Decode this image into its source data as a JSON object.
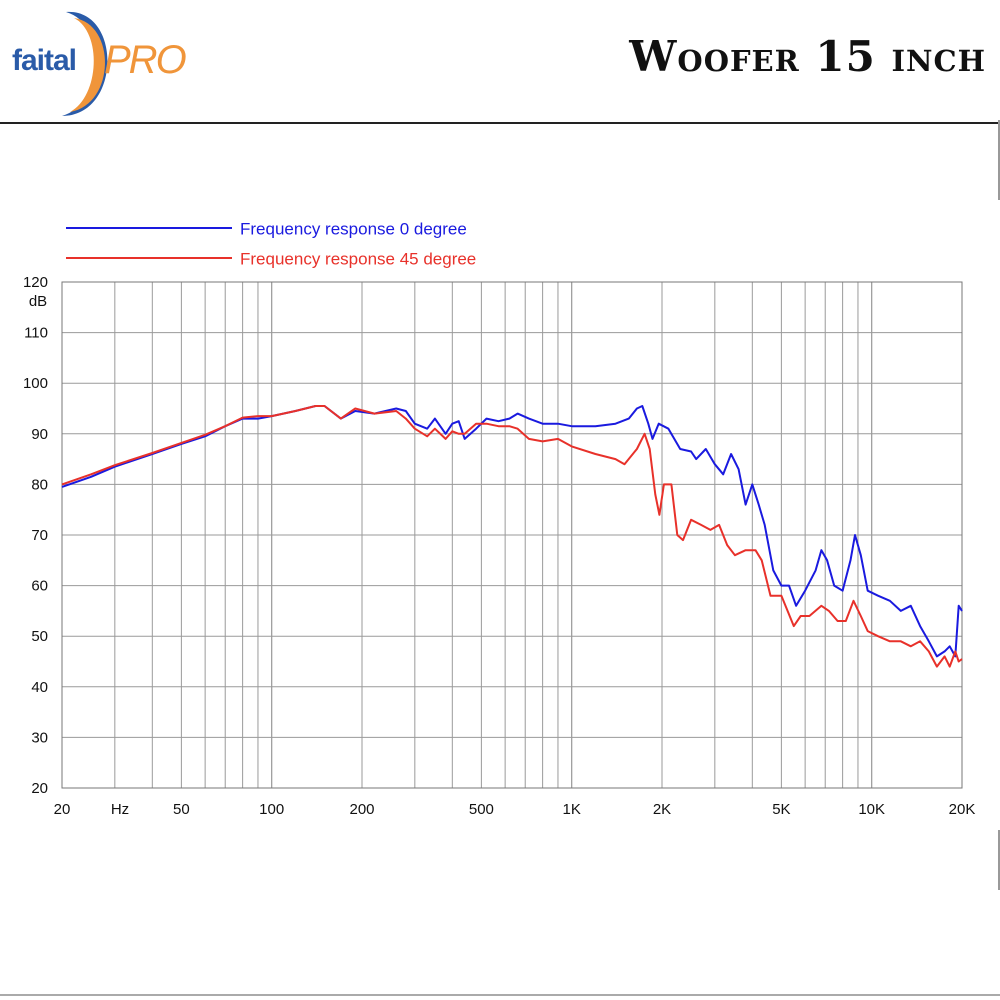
{
  "header": {
    "logo_faital": "faital",
    "logo_pro": "PRO",
    "title": "Woofer 15 inch"
  },
  "colors": {
    "series_0": "#1a1adf",
    "series_45": "#e8312a",
    "logo_blue": "#2a5ba8",
    "logo_orange": "#f0953a"
  },
  "chart_data": {
    "type": "line",
    "xscale": "log",
    "xlim": [
      20,
      20000
    ],
    "ylim": [
      20,
      120
    ],
    "ylabel": "dB",
    "xlabel": "Hz",
    "grid": true,
    "legend_position": "top-left",
    "x_ticks": [
      {
        "value": 20,
        "label": "20"
      },
      {
        "value": 50,
        "label": "50"
      },
      {
        "value": 100,
        "label": "100"
      },
      {
        "value": 200,
        "label": "200"
      },
      {
        "value": 500,
        "label": "500"
      },
      {
        "value": 1000,
        "label": "1K"
      },
      {
        "value": 2000,
        "label": "2K"
      },
      {
        "value": 5000,
        "label": "5K"
      },
      {
        "value": 10000,
        "label": "10K"
      },
      {
        "value": 20000,
        "label": "20K"
      }
    ],
    "y_ticks": [
      20,
      30,
      40,
      50,
      60,
      70,
      80,
      90,
      100,
      110,
      120
    ],
    "series": [
      {
        "name": "Frequency response 0 degree",
        "color": "#1a1adf",
        "points": [
          [
            20,
            79.5
          ],
          [
            25,
            81.5
          ],
          [
            30,
            83.5
          ],
          [
            40,
            86
          ],
          [
            50,
            88
          ],
          [
            60,
            89.5
          ],
          [
            70,
            91.5
          ],
          [
            80,
            93
          ],
          [
            90,
            93
          ],
          [
            100,
            93.5
          ],
          [
            120,
            94.5
          ],
          [
            140,
            95.5
          ],
          [
            150,
            95.5
          ],
          [
            170,
            93
          ],
          [
            190,
            94.5
          ],
          [
            220,
            94
          ],
          [
            260,
            95
          ],
          [
            280,
            94.5
          ],
          [
            300,
            92
          ],
          [
            330,
            91
          ],
          [
            350,
            93
          ],
          [
            380,
            90
          ],
          [
            400,
            92
          ],
          [
            420,
            92.5
          ],
          [
            440,
            89
          ],
          [
            480,
            91
          ],
          [
            520,
            93
          ],
          [
            570,
            92.5
          ],
          [
            620,
            93
          ],
          [
            660,
            94
          ],
          [
            720,
            93
          ],
          [
            800,
            92
          ],
          [
            900,
            92
          ],
          [
            1000,
            91.5
          ],
          [
            1200,
            91.5
          ],
          [
            1400,
            92
          ],
          [
            1550,
            93
          ],
          [
            1650,
            95
          ],
          [
            1720,
            95.5
          ],
          [
            1800,
            92
          ],
          [
            1860,
            89
          ],
          [
            1950,
            92
          ],
          [
            2100,
            91
          ],
          [
            2300,
            87
          ],
          [
            2500,
            86.5
          ],
          [
            2600,
            85
          ],
          [
            2800,
            87
          ],
          [
            3000,
            84
          ],
          [
            3200,
            82
          ],
          [
            3400,
            86
          ],
          [
            3600,
            83
          ],
          [
            3800,
            76
          ],
          [
            4000,
            80
          ],
          [
            4200,
            76
          ],
          [
            4400,
            72
          ],
          [
            4700,
            63
          ],
          [
            5000,
            60
          ],
          [
            5300,
            60
          ],
          [
            5600,
            56
          ],
          [
            6000,
            59
          ],
          [
            6500,
            63
          ],
          [
            6800,
            67
          ],
          [
            7100,
            65
          ],
          [
            7500,
            60
          ],
          [
            8000,
            59
          ],
          [
            8500,
            65
          ],
          [
            8800,
            70
          ],
          [
            9200,
            66
          ],
          [
            9700,
            59
          ],
          [
            10500,
            58
          ],
          [
            11500,
            57
          ],
          [
            12500,
            55
          ],
          [
            13500,
            56
          ],
          [
            14500,
            52
          ],
          [
            15500,
            49
          ],
          [
            16500,
            46
          ],
          [
            17500,
            47
          ],
          [
            18200,
            48
          ],
          [
            19000,
            46
          ],
          [
            19500,
            56
          ],
          [
            20000,
            55
          ]
        ]
      },
      {
        "name": "Frequency response 45 degree",
        "color": "#e8312a",
        "points": [
          [
            20,
            80
          ],
          [
            25,
            82
          ],
          [
            30,
            83.8
          ],
          [
            40,
            86.2
          ],
          [
            50,
            88.2
          ],
          [
            60,
            89.8
          ],
          [
            70,
            91.5
          ],
          [
            80,
            93.2
          ],
          [
            90,
            93.5
          ],
          [
            100,
            93.5
          ],
          [
            120,
            94.5
          ],
          [
            140,
            95.5
          ],
          [
            150,
            95.5
          ],
          [
            170,
            93
          ],
          [
            190,
            95
          ],
          [
            220,
            94
          ],
          [
            260,
            94.5
          ],
          [
            280,
            93
          ],
          [
            300,
            91
          ],
          [
            330,
            89.5
          ],
          [
            350,
            91
          ],
          [
            380,
            89
          ],
          [
            400,
            90.5
          ],
          [
            420,
            90
          ],
          [
            440,
            90
          ],
          [
            480,
            92
          ],
          [
            520,
            92
          ],
          [
            570,
            91.5
          ],
          [
            620,
            91.5
          ],
          [
            660,
            91
          ],
          [
            720,
            89
          ],
          [
            800,
            88.5
          ],
          [
            900,
            89
          ],
          [
            1000,
            87.5
          ],
          [
            1200,
            86
          ],
          [
            1400,
            85
          ],
          [
            1500,
            84
          ],
          [
            1650,
            87
          ],
          [
            1750,
            90
          ],
          [
            1820,
            87
          ],
          [
            1900,
            78
          ],
          [
            1960,
            74
          ],
          [
            2030,
            80
          ],
          [
            2150,
            80
          ],
          [
            2250,
            70
          ],
          [
            2350,
            69
          ],
          [
            2500,
            73
          ],
          [
            2700,
            72
          ],
          [
            2900,
            71
          ],
          [
            3100,
            72
          ],
          [
            3300,
            68
          ],
          [
            3500,
            66
          ],
          [
            3800,
            67
          ],
          [
            4100,
            67
          ],
          [
            4300,
            65
          ],
          [
            4600,
            58
          ],
          [
            5000,
            58
          ],
          [
            5500,
            52
          ],
          [
            5800,
            54
          ],
          [
            6200,
            54
          ],
          [
            6800,
            56
          ],
          [
            7200,
            55
          ],
          [
            7700,
            53
          ],
          [
            8200,
            53
          ],
          [
            8700,
            57
          ],
          [
            9200,
            54
          ],
          [
            9700,
            51
          ],
          [
            10500,
            50
          ],
          [
            11500,
            49
          ],
          [
            12500,
            49
          ],
          [
            13500,
            48
          ],
          [
            14500,
            49
          ],
          [
            15500,
            47
          ],
          [
            16500,
            44
          ],
          [
            17500,
            46
          ],
          [
            18200,
            44
          ],
          [
            19000,
            47
          ],
          [
            19500,
            45
          ],
          [
            20000,
            45.5
          ]
        ]
      }
    ]
  }
}
